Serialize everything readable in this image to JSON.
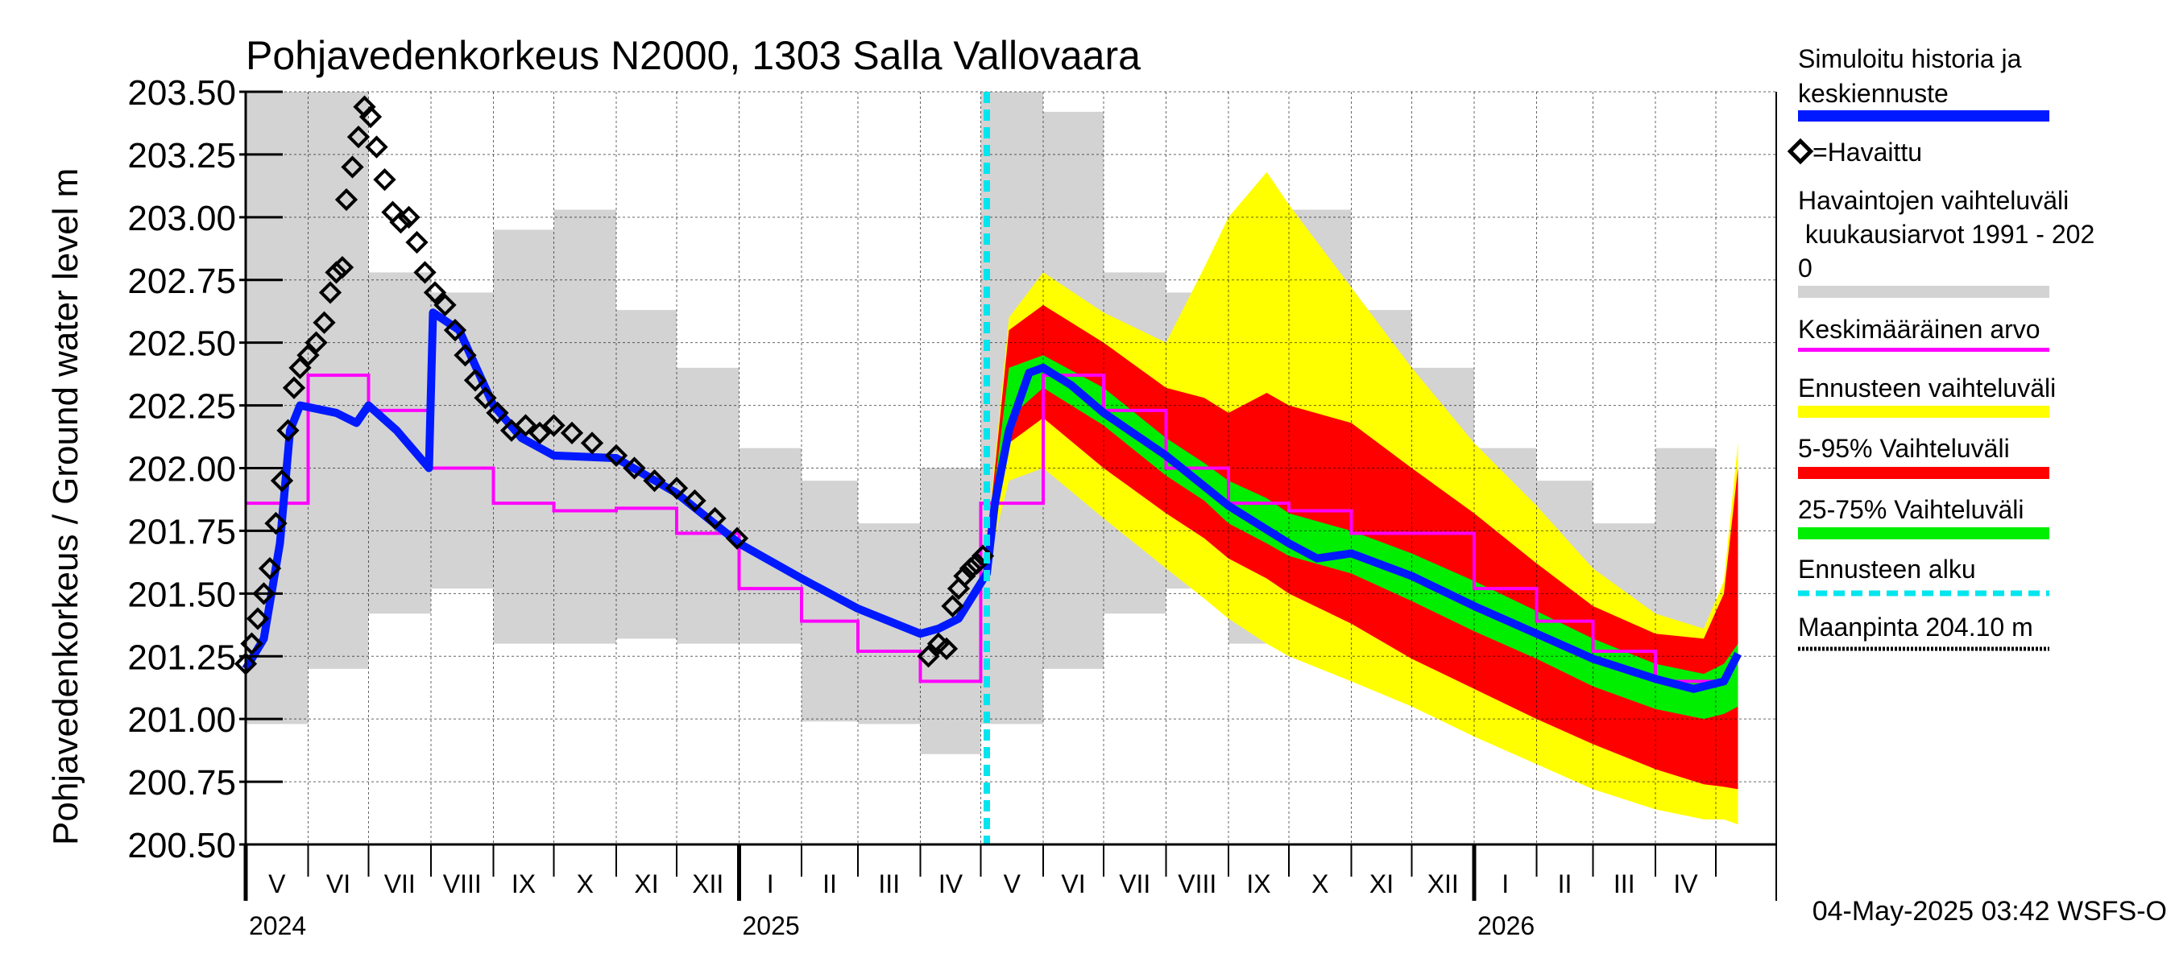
{
  "chart_data": {
    "type": "line",
    "title": "Pohjavedenkorkeus N2000, 1303 Salla Vallovaara",
    "ylabel": "Pohjavedenkorkeus / Ground water level   m",
    "ylim": [
      200.5,
      203.5
    ],
    "yticks": [
      "200.50",
      "200.75",
      "201.00",
      "201.25",
      "201.50",
      "201.75",
      "202.00",
      "202.25",
      "202.50",
      "202.75",
      "203.00",
      "203.25",
      "203.50"
    ],
    "xlim": [
      "2024-05-01",
      "2026-05-31"
    ],
    "forecast_start": "2025-05-04",
    "months": [
      "V",
      "VI",
      "VII",
      "VIII",
      "IX",
      "X",
      "XI",
      "XII",
      "I",
      "II",
      "III",
      "IV",
      "V",
      "VI",
      "VII",
      "VIII",
      "IX",
      "X",
      "XI",
      "XII",
      "I",
      "II",
      "III",
      "IV"
    ],
    "years": [
      {
        "label": "2024",
        "date": "2024-05-01"
      },
      {
        "label": "2025",
        "date": "2025-01-01"
      },
      {
        "label": "2026",
        "date": "2026-01-01"
      }
    ],
    "timestamp": "04-May-2025 03:42 WSFS-O",
    "legend": {
      "sim_1": "Simuloitu historia ja",
      "sim_2": "keskiennuste",
      "obs": "=Havaittu",
      "range_1": "Havaintojen vaihteluväli",
      "range_2": " kuukausiarvot 1991 - 202",
      "range_3": "0",
      "mean": "Keskimääräinen arvo",
      "fc_range": "Ennusteen vaihteluväli",
      "p5_95": "5-95% Vaihteluväli",
      "p25_75": "25-75% Vaihteluväli",
      "fc_start": "Ennusteen alku",
      "ground": "Maanpinta 204.10 m"
    },
    "colors": {
      "sim": "#0019ff",
      "obs": "#000000",
      "range": "#d3d3d3",
      "mean": "#ff00ff",
      "fc_range": "#ffff00",
      "p5_95": "#ff0000",
      "p25_75": "#00ee00",
      "fc_start": "#00e5ee",
      "ground": "#000000"
    },
    "monthly_range": [
      {
        "month": "2024-05",
        "min": 200.98,
        "max": 203.5
      },
      {
        "month": "2024-06",
        "min": 201.2,
        "max": 203.5
      },
      {
        "month": "2024-07",
        "min": 201.42,
        "max": 202.78
      },
      {
        "month": "2024-08",
        "min": 201.52,
        "max": 202.7
      },
      {
        "month": "2024-09",
        "min": 201.3,
        "max": 202.95
      },
      {
        "month": "2024-10",
        "min": 201.3,
        "max": 203.03
      },
      {
        "month": "2024-11",
        "min": 201.32,
        "max": 202.63
      },
      {
        "month": "2024-12",
        "min": 201.3,
        "max": 202.4
      },
      {
        "month": "2025-01",
        "min": 201.3,
        "max": 202.08
      },
      {
        "month": "2025-02",
        "min": 200.99,
        "max": 201.95
      },
      {
        "month": "2025-03",
        "min": 200.98,
        "max": 201.78
      },
      {
        "month": "2025-04",
        "min": 200.86,
        "max": 202.0
      },
      {
        "month": "2025-05",
        "min": 200.98,
        "max": 203.5
      },
      {
        "month": "2025-06",
        "min": 201.2,
        "max": 203.42
      },
      {
        "month": "2025-07",
        "min": 201.42,
        "max": 202.78
      },
      {
        "month": "2025-08",
        "min": 201.52,
        "max": 202.7
      },
      {
        "month": "2025-09",
        "min": 201.3,
        "max": 202.95
      },
      {
        "month": "2025-10",
        "min": 201.3,
        "max": 203.03
      },
      {
        "month": "2025-11",
        "min": 201.32,
        "max": 202.63
      },
      {
        "month": "2025-12",
        "min": 201.3,
        "max": 202.4
      },
      {
        "month": "2026-01",
        "min": 201.3,
        "max": 202.08
      },
      {
        "month": "2026-02",
        "min": 200.99,
        "max": 201.95
      },
      {
        "month": "2026-03",
        "min": 200.98,
        "max": 201.78
      },
      {
        "month": "2026-04",
        "min": 200.86,
        "max": 202.08
      }
    ],
    "monthly_mean": [
      {
        "month": "2024-05",
        "value": 201.86
      },
      {
        "month": "2024-06",
        "value": 202.37
      },
      {
        "month": "2024-07",
        "value": 202.23
      },
      {
        "month": "2024-08",
        "value": 202.0
      },
      {
        "month": "2024-09",
        "value": 201.86
      },
      {
        "month": "2024-10",
        "value": 201.83
      },
      {
        "month": "2024-11",
        "value": 201.84
      },
      {
        "month": "2024-12",
        "value": 201.74
      },
      {
        "month": "2025-01",
        "value": 201.52
      },
      {
        "month": "2025-02",
        "value": 201.39
      },
      {
        "month": "2025-03",
        "value": 201.27
      },
      {
        "month": "2025-04",
        "value": 201.15
      },
      {
        "month": "2025-05",
        "value": 201.86
      },
      {
        "month": "2025-06",
        "value": 202.37
      },
      {
        "month": "2025-07",
        "value": 202.23
      },
      {
        "month": "2025-08",
        "value": 202.0
      },
      {
        "month": "2025-09",
        "value": 201.86
      },
      {
        "month": "2025-10",
        "value": 201.83
      },
      {
        "month": "2025-11",
        "value": 201.74
      },
      {
        "month": "2025-12",
        "value": 201.74
      },
      {
        "month": "2026-01",
        "value": 201.52
      },
      {
        "month": "2026-02",
        "value": 201.39
      },
      {
        "month": "2026-03",
        "value": 201.27
      },
      {
        "month": "2026-04",
        "value": 201.15
      }
    ],
    "simulated": [
      {
        "date": "2024-05-01",
        "value": 201.2
      },
      {
        "date": "2024-05-10",
        "value": 201.32
      },
      {
        "date": "2024-05-18",
        "value": 201.7
      },
      {
        "date": "2024-05-23",
        "value": 202.15
      },
      {
        "date": "2024-05-28",
        "value": 202.25
      },
      {
        "date": "2024-06-15",
        "value": 202.22
      },
      {
        "date": "2024-06-25",
        "value": 202.18
      },
      {
        "date": "2024-07-01",
        "value": 202.25
      },
      {
        "date": "2024-07-15",
        "value": 202.15
      },
      {
        "date": "2024-07-31",
        "value": 202.0
      },
      {
        "date": "2024-08-02",
        "value": 202.62
      },
      {
        "date": "2024-08-15",
        "value": 202.55
      },
      {
        "date": "2024-09-01",
        "value": 202.25
      },
      {
        "date": "2024-09-15",
        "value": 202.12
      },
      {
        "date": "2024-10-01",
        "value": 202.05
      },
      {
        "date": "2024-11-01",
        "value": 202.04
      },
      {
        "date": "2024-12-01",
        "value": 201.9
      },
      {
        "date": "2025-01-01",
        "value": 201.7
      },
      {
        "date": "2025-02-01",
        "value": 201.56
      },
      {
        "date": "2025-03-01",
        "value": 201.44
      },
      {
        "date": "2025-04-01",
        "value": 201.34
      },
      {
        "date": "2025-04-10",
        "value": 201.36
      },
      {
        "date": "2025-04-20",
        "value": 201.4
      },
      {
        "date": "2025-05-04",
        "value": 201.58
      },
      {
        "date": "2025-05-08",
        "value": 201.86
      },
      {
        "date": "2025-05-15",
        "value": 202.15
      },
      {
        "date": "2025-05-25",
        "value": 202.38
      },
      {
        "date": "2025-06-01",
        "value": 202.4
      },
      {
        "date": "2025-06-15",
        "value": 202.33
      },
      {
        "date": "2025-07-01",
        "value": 202.22
      },
      {
        "date": "2025-08-01",
        "value": 202.05
      },
      {
        "date": "2025-09-01",
        "value": 201.85
      },
      {
        "date": "2025-10-01",
        "value": 201.7
      },
      {
        "date": "2025-10-15",
        "value": 201.64
      },
      {
        "date": "2025-11-01",
        "value": 201.66
      },
      {
        "date": "2025-12-01",
        "value": 201.57
      },
      {
        "date": "2026-01-01",
        "value": 201.45
      },
      {
        "date": "2026-02-01",
        "value": 201.34
      },
      {
        "date": "2026-03-01",
        "value": 201.24
      },
      {
        "date": "2026-04-01",
        "value": 201.16
      },
      {
        "date": "2026-04-20",
        "value": 201.12
      },
      {
        "date": "2026-05-05",
        "value": 201.15
      },
      {
        "date": "2026-05-12",
        "value": 201.26
      }
    ],
    "observed": [
      {
        "date": "2024-05-01",
        "value": 201.22
      },
      {
        "date": "2024-05-04",
        "value": 201.3
      },
      {
        "date": "2024-05-07",
        "value": 201.4
      },
      {
        "date": "2024-05-10",
        "value": 201.5
      },
      {
        "date": "2024-05-13",
        "value": 201.6
      },
      {
        "date": "2024-05-16",
        "value": 201.78
      },
      {
        "date": "2024-05-19",
        "value": 201.95
      },
      {
        "date": "2024-05-22",
        "value": 202.15
      },
      {
        "date": "2024-05-25",
        "value": 202.32
      },
      {
        "date": "2024-05-28",
        "value": 202.4
      },
      {
        "date": "2024-06-01",
        "value": 202.45
      },
      {
        "date": "2024-06-05",
        "value": 202.5
      },
      {
        "date": "2024-06-09",
        "value": 202.58
      },
      {
        "date": "2024-06-12",
        "value": 202.7
      },
      {
        "date": "2024-06-15",
        "value": 202.78
      },
      {
        "date": "2024-06-18",
        "value": 202.8
      },
      {
        "date": "2024-06-20",
        "value": 203.07
      },
      {
        "date": "2024-06-23",
        "value": 203.2
      },
      {
        "date": "2024-06-26",
        "value": 203.32
      },
      {
        "date": "2024-06-29",
        "value": 203.44
      },
      {
        "date": "2024-07-02",
        "value": 203.4
      },
      {
        "date": "2024-07-05",
        "value": 203.28
      },
      {
        "date": "2024-07-09",
        "value": 203.15
      },
      {
        "date": "2024-07-13",
        "value": 203.02
      },
      {
        "date": "2024-07-17",
        "value": 202.98
      },
      {
        "date": "2024-07-21",
        "value": 203.0
      },
      {
        "date": "2024-07-25",
        "value": 202.9
      },
      {
        "date": "2024-07-29",
        "value": 202.78
      },
      {
        "date": "2024-08-03",
        "value": 202.7
      },
      {
        "date": "2024-08-08",
        "value": 202.65
      },
      {
        "date": "2024-08-13",
        "value": 202.55
      },
      {
        "date": "2024-08-18",
        "value": 202.45
      },
      {
        "date": "2024-08-23",
        "value": 202.35
      },
      {
        "date": "2024-08-28",
        "value": 202.28
      },
      {
        "date": "2024-09-03",
        "value": 202.22
      },
      {
        "date": "2024-09-10",
        "value": 202.15
      },
      {
        "date": "2024-09-17",
        "value": 202.17
      },
      {
        "date": "2024-09-24",
        "value": 202.14
      },
      {
        "date": "2024-10-01",
        "value": 202.17
      },
      {
        "date": "2024-10-10",
        "value": 202.14
      },
      {
        "date": "2024-10-20",
        "value": 202.1
      },
      {
        "date": "2024-11-01",
        "value": 202.05
      },
      {
        "date": "2024-11-10",
        "value": 202.0
      },
      {
        "date": "2024-11-20",
        "value": 201.95
      },
      {
        "date": "2024-12-01",
        "value": 201.92
      },
      {
        "date": "2024-12-10",
        "value": 201.87
      },
      {
        "date": "2024-12-20",
        "value": 201.8
      },
      {
        "date": "2024-12-31",
        "value": 201.72
      },
      {
        "date": "2025-04-05",
        "value": 201.25
      },
      {
        "date": "2025-04-10",
        "value": 201.3
      },
      {
        "date": "2025-04-14",
        "value": 201.28
      },
      {
        "date": "2025-04-17",
        "value": 201.45
      },
      {
        "date": "2025-04-20",
        "value": 201.52
      },
      {
        "date": "2025-04-23",
        "value": 201.57
      },
      {
        "date": "2025-04-26",
        "value": 201.6
      },
      {
        "date": "2025-04-29",
        "value": 201.62
      },
      {
        "date": "2025-05-02",
        "value": 201.65
      }
    ],
    "forecast_bands": [
      {
        "date": "2025-05-04",
        "fc_min": 201.6,
        "fc_max": 201.7,
        "p5": 201.62,
        "p95": 201.68,
        "p25": 201.64,
        "p75": 201.67
      },
      {
        "date": "2025-05-15",
        "fc_min": 201.95,
        "fc_max": 202.6,
        "p5": 202.1,
        "p95": 202.55,
        "p25": 202.2,
        "p75": 202.4
      },
      {
        "date": "2025-06-01",
        "fc_min": 202.0,
        "fc_max": 202.78,
        "p5": 202.2,
        "p95": 202.65,
        "p25": 202.32,
        "p75": 202.45
      },
      {
        "date": "2025-07-01",
        "fc_min": 201.8,
        "fc_max": 202.62,
        "p5": 202.0,
        "p95": 202.5,
        "p25": 202.17,
        "p75": 202.32
      },
      {
        "date": "2025-08-01",
        "fc_min": 201.6,
        "fc_max": 202.5,
        "p5": 201.82,
        "p95": 202.32,
        "p25": 201.97,
        "p75": 202.12
      },
      {
        "date": "2025-08-20",
        "fc_min": 201.48,
        "fc_max": 202.8,
        "p5": 201.72,
        "p95": 202.28,
        "p25": 201.87,
        "p75": 202.02
      },
      {
        "date": "2025-09-01",
        "fc_min": 201.4,
        "fc_max": 203.0,
        "p5": 201.64,
        "p95": 202.22,
        "p25": 201.78,
        "p75": 201.95
      },
      {
        "date": "2025-09-20",
        "fc_min": 201.3,
        "fc_max": 203.18,
        "p5": 201.56,
        "p95": 202.3,
        "p25": 201.7,
        "p75": 201.88
      },
      {
        "date": "2025-10-01",
        "fc_min": 201.25,
        "fc_max": 203.05,
        "p5": 201.5,
        "p95": 202.25,
        "p25": 201.65,
        "p75": 201.82
      },
      {
        "date": "2025-11-01",
        "fc_min": 201.15,
        "fc_max": 202.72,
        "p5": 201.38,
        "p95": 202.18,
        "p25": 201.58,
        "p75": 201.75
      },
      {
        "date": "2025-12-01",
        "fc_min": 201.05,
        "fc_max": 202.4,
        "p5": 201.24,
        "p95": 202.0,
        "p25": 201.47,
        "p75": 201.66
      },
      {
        "date": "2026-01-01",
        "fc_min": 200.93,
        "fc_max": 202.1,
        "p5": 201.12,
        "p95": 201.82,
        "p25": 201.35,
        "p75": 201.55
      },
      {
        "date": "2026-02-01",
        "fc_min": 200.82,
        "fc_max": 201.85,
        "p5": 201.0,
        "p95": 201.62,
        "p25": 201.24,
        "p75": 201.43
      },
      {
        "date": "2026-03-01",
        "fc_min": 200.72,
        "fc_max": 201.6,
        "p5": 200.9,
        "p95": 201.45,
        "p25": 201.13,
        "p75": 201.32
      },
      {
        "date": "2026-04-01",
        "fc_min": 200.64,
        "fc_max": 201.42,
        "p5": 200.8,
        "p95": 201.34,
        "p25": 201.04,
        "p75": 201.22
      },
      {
        "date": "2026-04-25",
        "fc_min": 200.6,
        "fc_max": 201.36,
        "p5": 200.74,
        "p95": 201.32,
        "p25": 201.0,
        "p75": 201.18
      },
      {
        "date": "2026-05-05",
        "fc_min": 200.6,
        "fc_max": 201.55,
        "p5": 200.73,
        "p95": 201.5,
        "p25": 201.02,
        "p75": 201.22
      },
      {
        "date": "2026-05-12",
        "fc_min": 200.58,
        "fc_max": 202.1,
        "p5": 200.72,
        "p95": 202.0,
        "p25": 201.05,
        "p75": 201.3
      }
    ]
  }
}
